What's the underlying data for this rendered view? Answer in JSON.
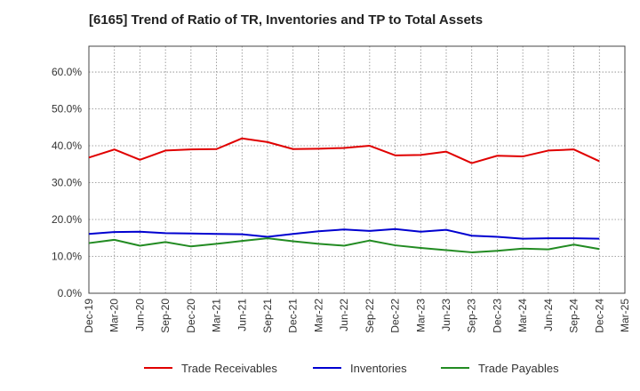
{
  "chart_data": {
    "type": "line",
    "title": "[6165]  Trend of Ratio of TR, Inventories and TP to Total Assets",
    "x": [
      "Dec-19",
      "Mar-20",
      "Jun-20",
      "Sep-20",
      "Dec-20",
      "Mar-21",
      "Jun-21",
      "Sep-21",
      "Dec-21",
      "Mar-22",
      "Jun-22",
      "Sep-22",
      "Dec-22",
      "Mar-23",
      "Jun-23",
      "Sep-23",
      "Dec-23",
      "Mar-24",
      "Jun-24",
      "Sep-24",
      "Dec-24"
    ],
    "x_ticks": [
      "Dec-19",
      "Mar-20",
      "Jun-20",
      "Sep-20",
      "Dec-20",
      "Mar-21",
      "Jun-21",
      "Sep-21",
      "Dec-21",
      "Mar-22",
      "Jun-22",
      "Sep-22",
      "Dec-22",
      "Mar-23",
      "Jun-23",
      "Sep-23",
      "Dec-23",
      "Mar-24",
      "Jun-24",
      "Sep-24",
      "Dec-24",
      "Mar-25"
    ],
    "y_ticks": [
      "0.0%",
      "10.0%",
      "20.0%",
      "30.0%",
      "40.0%",
      "50.0%",
      "60.0%"
    ],
    "ylim": [
      0,
      67
    ],
    "grid": true,
    "legend_position": "bottom",
    "series": [
      {
        "name": "Trade Receivables",
        "color": "#e00000",
        "values": [
          36.8,
          39.0,
          36.2,
          38.7,
          39.0,
          39.1,
          42.0,
          41.0,
          39.1,
          39.2,
          39.4,
          40.0,
          37.4,
          37.5,
          38.4,
          35.3,
          37.3,
          37.1,
          38.7,
          39.0,
          35.8
        ]
      },
      {
        "name": "Inventories",
        "color": "#0000d0",
        "values": [
          16.1,
          16.6,
          16.7,
          16.3,
          16.2,
          16.1,
          16.0,
          15.3,
          16.1,
          16.8,
          17.3,
          16.9,
          17.4,
          16.7,
          17.2,
          15.6,
          15.3,
          14.8,
          14.9,
          14.9,
          14.8
        ]
      },
      {
        "name": "Trade Payables",
        "color": "#228b22",
        "values": [
          13.6,
          14.5,
          12.9,
          13.9,
          12.7,
          13.4,
          14.2,
          14.9,
          14.1,
          13.4,
          12.9,
          14.3,
          13.0,
          12.3,
          11.7,
          11.1,
          11.5,
          12.1,
          11.9,
          13.2,
          12.0
        ]
      }
    ]
  }
}
